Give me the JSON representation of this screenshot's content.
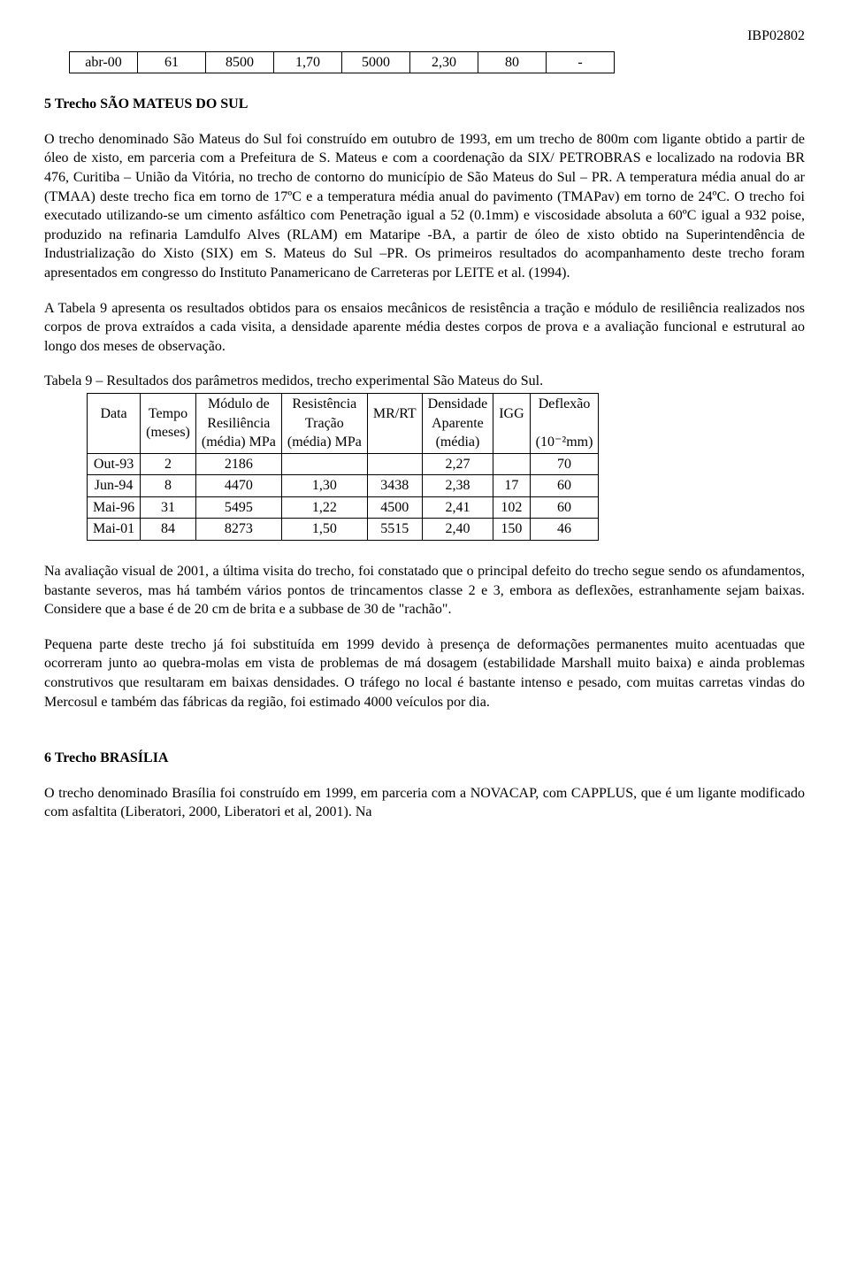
{
  "doc_id": "IBP02802",
  "table_small": {
    "row": [
      "abr-00",
      "61",
      "8500",
      "1,70",
      "5000",
      "2,30",
      "80",
      "-"
    ]
  },
  "section5": {
    "heading": "5 Trecho SÃO MATEUS DO SUL",
    "p1": "O trecho denominado São Mateus do Sul foi construído em outubro de 1993, em um trecho de 800m com ligante obtido a partir de óleo de xisto, em parceria com a Prefeitura de S. Mateus e com a coordenação da SIX/ PETROBRAS e localizado na rodovia BR 476, Curitiba – União da Vitória, no trecho de contorno do município de São Mateus do Sul – PR. A temperatura média anual do ar (TMAA) deste trecho fica em torno de 17ºC e a temperatura média anual do pavimento (TMAPav) em torno de 24ºC. O trecho foi executado utilizando-se um cimento asfáltico com Penetração igual a 52 (0.1mm) e viscosidade absoluta a 60ºC igual a 932 poise, produzido na refinaria Lamdulfo Alves (RLAM) em Mataripe -BA, a partir de óleo de xisto obtido na Superintendência de Industrialização do Xisto (SIX) em S. Mateus do Sul –PR. Os primeiros resultados do acompanhamento deste trecho foram apresentados em congresso do Instituto Panamericano de Carreteras por LEITE et al. (1994).",
    "p2": "A Tabela 9 apresenta os resultados obtidos para os ensaios mecânicos de resistência a tração e módulo de resiliência realizados nos corpos de prova extraídos a cada visita, a densidade aparente média destes corpos de prova e a avaliação funcional e estrutural ao longo dos meses de observação."
  },
  "table9": {
    "caption": "Tabela 9 – Resultados dos parâmetros medidos, trecho experimental São Mateus do Sul.",
    "headers": {
      "c0a": "Data",
      "c0b": "",
      "c0c": "",
      "c1a": "Tempo",
      "c1b": "(meses)",
      "c1c": "",
      "c2a": "Módulo de",
      "c2b": "Resiliência",
      "c2c": "(média) MPa",
      "c3a": "Resistência",
      "c3b": "Tração",
      "c3c": "(média) MPa",
      "c4a": "MR/RT",
      "c4b": "",
      "c4c": "",
      "c5a": "Densidade",
      "c5b": "Aparente",
      "c5c": "(média)",
      "c6a": "IGG",
      "c6b": "",
      "c6c": "",
      "c7a": "Deflexão",
      "c7b": "",
      "c7c": "(10⁻²mm)"
    },
    "rows": [
      [
        "Out-93",
        "2",
        "2186",
        "",
        "",
        "2,27",
        "",
        "70"
      ],
      [
        "Jun-94",
        "8",
        "4470",
        "1,30",
        "3438",
        "2,38",
        "17",
        "60"
      ],
      [
        "Mai-96",
        "31",
        "5495",
        "1,22",
        "4500",
        "2,41",
        "102",
        "60"
      ],
      [
        "Mai-01",
        "84",
        "8273",
        "1,50",
        "5515",
        "2,40",
        "150",
        "46"
      ]
    ]
  },
  "p3": "Na avaliação visual de 2001, a última visita do trecho, foi constatado que o principal defeito do trecho segue sendo os afundamentos, bastante severos, mas há também vários pontos de trincamentos classe 2 e 3, embora as deflexões, estranhamente sejam baixas. Considere que a base é de 20 cm de brita e a subbase de 30 de \"rachão\".",
  "p4": "Pequena parte deste trecho já foi substituída em 1999 devido à presença de deformações permanentes muito acentuadas que ocorreram junto ao quebra-molas em vista de problemas de má dosagem (estabilidade Marshall muito baixa) e ainda problemas construtivos que resultaram em baixas densidades. O tráfego no local é bastante intenso e pesado, com muitas carretas vindas do Mercosul e também das fábricas da região, foi estimado 4000 veículos por dia.",
  "section6": {
    "heading": "6 Trecho BRASÍLIA",
    "p1": "O trecho denominado Brasília foi construído em 1999, em parceria com a NOVACAP, com CAPPLUS, que é um ligante modificado com asfaltita (Liberatori, 2000, Liberatori et al, 2001). Na"
  }
}
